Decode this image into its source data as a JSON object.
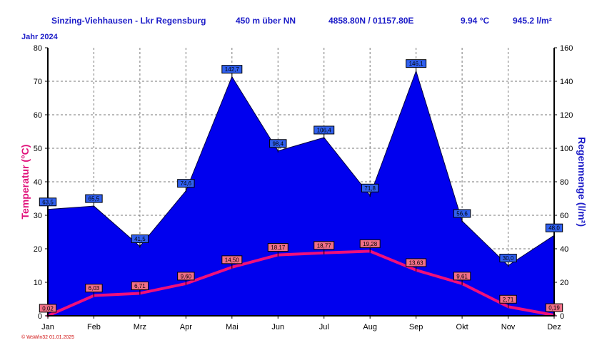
{
  "header": {
    "station": "Sinzing-Viehhausen - Lkr Regensburg",
    "elevation": "450 m über NN",
    "coordinates": "4858.80N / 01157.80E",
    "avg_temp": "9.94 °C",
    "total_rain": "945.2 l/m²"
  },
  "year_label": "Jahr  2024",
  "copyright": "© WsWin32  01.01.2025",
  "colors": {
    "rain_fill": "#0000ee",
    "temp_line": "#f0107a",
    "header_text": "#1c1cc8",
    "temp_label_bg": "#f07088",
    "rain_label_bg": "#3060f0"
  },
  "chart_data": {
    "type": "area",
    "categories": [
      "Jan",
      "Feb",
      "Mrz",
      "Apr",
      "Mai",
      "Jun",
      "Jul",
      "Aug",
      "Sep",
      "Okt",
      "Nov",
      "Dez"
    ],
    "series": [
      {
        "name": "Regenmenge",
        "axis": "right",
        "type": "area",
        "values": [
          63.5,
          65.5,
          41.5,
          74.6,
          142.7,
          98.4,
          106.4,
          71.8,
          146.1,
          56.6,
          30.0,
          48.0
        ],
        "labels": [
          "63,5",
          "65,5",
          "41,5",
          "74,6",
          "142,7",
          "98,4",
          "106,4",
          "71,8",
          "146,1",
          "56,6",
          "30,0",
          "48,0"
        ]
      },
      {
        "name": "Temperatur",
        "axis": "left",
        "type": "line",
        "values": [
          0.02,
          6.03,
          6.71,
          9.6,
          14.5,
          18.17,
          18.77,
          19.28,
          13.63,
          9.61,
          2.71,
          0.19
        ],
        "labels": [
          "0,02",
          "6,03",
          "6,71",
          "9,60",
          "14,50",
          "18,17",
          "18,77",
          "19,28",
          "13,63",
          "9,61",
          "2,71",
          "0,19"
        ]
      }
    ],
    "y_left": {
      "label": "Temperatur  (°C)",
      "min": 0,
      "max": 80,
      "ticks": [
        "0",
        "10",
        "20",
        "30",
        "40",
        "50",
        "60",
        "70",
        "80"
      ]
    },
    "y_right": {
      "label": "Regenmenge   (l/m²)",
      "min": 0,
      "max": 160,
      "ticks": [
        "0",
        "20",
        "40",
        "60",
        "80",
        "100",
        "120",
        "140",
        "160"
      ]
    },
    "grid": true
  }
}
